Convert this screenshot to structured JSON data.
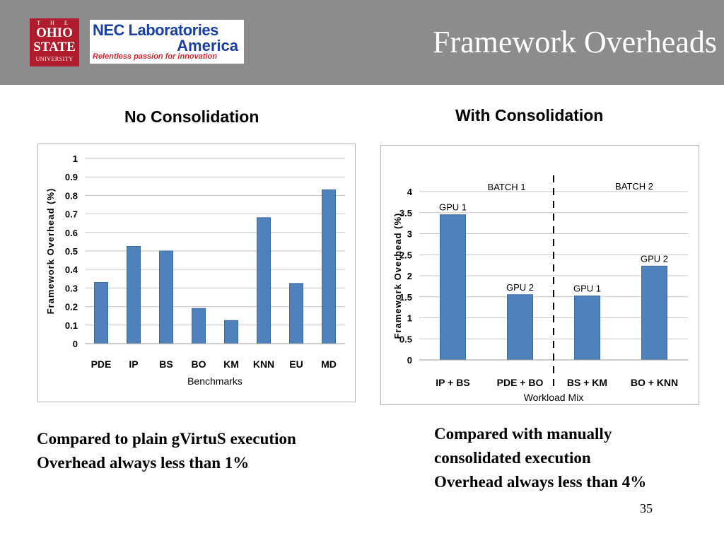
{
  "header": {
    "title": "Framework Overheads",
    "osu_logo": {
      "the": "T H E",
      "line1": "OHIO",
      "line2": "STATE",
      "line3": "UNIVERSITY"
    },
    "nec_logo": {
      "line1": "NEC Laboratories",
      "line2": "America",
      "tagline": "Relentless passion for innovation"
    }
  },
  "left_panel": {
    "heading": "No Consolidation",
    "caption_lines": [
      "Compared to plain gVirtuS execution",
      "Overhead always less than 1%"
    ]
  },
  "right_panel": {
    "heading": "With Consolidation",
    "caption_lines": [
      "Compared with manually",
      "consolidated execution",
      "Overhead always less than 4%"
    ]
  },
  "page_number": "35",
  "colors": {
    "bar": "#4f81bd",
    "bar_edge": "#3a6aa8",
    "grid": "#c6c6c6",
    "header_bg": "#8c8c8c"
  },
  "chart_data": [
    {
      "type": "bar",
      "categories": [
        "PDE",
        "IP",
        "BS",
        "BO",
        "KM",
        "KNN",
        "EU",
        "MD"
      ],
      "values": [
        0.33,
        0.525,
        0.5,
        0.19,
        0.125,
        0.68,
        0.325,
        0.83
      ],
      "xlabel": "Benchmarks",
      "ylabel": "Framework Overhead (%)",
      "ylim": [
        0,
        1
      ],
      "yticks": [
        "0",
        "0.1",
        "0.2",
        "0.3",
        "0.4",
        "0.5",
        "0.6",
        "0.7",
        "0.8",
        "0.9",
        "1"
      ],
      "grid": true
    },
    {
      "type": "bar",
      "categories": [
        "IP + BS",
        "PDE + BO",
        "BS + KM",
        "BO + KNN"
      ],
      "values": [
        3.45,
        1.55,
        1.52,
        2.23
      ],
      "bar_labels": [
        "GPU 1",
        "GPU 2",
        "GPU 1",
        "GPU 2"
      ],
      "batch_labels": [
        "BATCH 1",
        "BATCH 2"
      ],
      "xlabel": "Workload Mix",
      "ylabel": "Framework Overhead (%)",
      "ylim": [
        0,
        4
      ],
      "yticks": [
        "0",
        "0.5",
        "1",
        "1.5",
        "2",
        "2.5",
        "3",
        "3.5",
        "4"
      ],
      "grid": true
    }
  ]
}
